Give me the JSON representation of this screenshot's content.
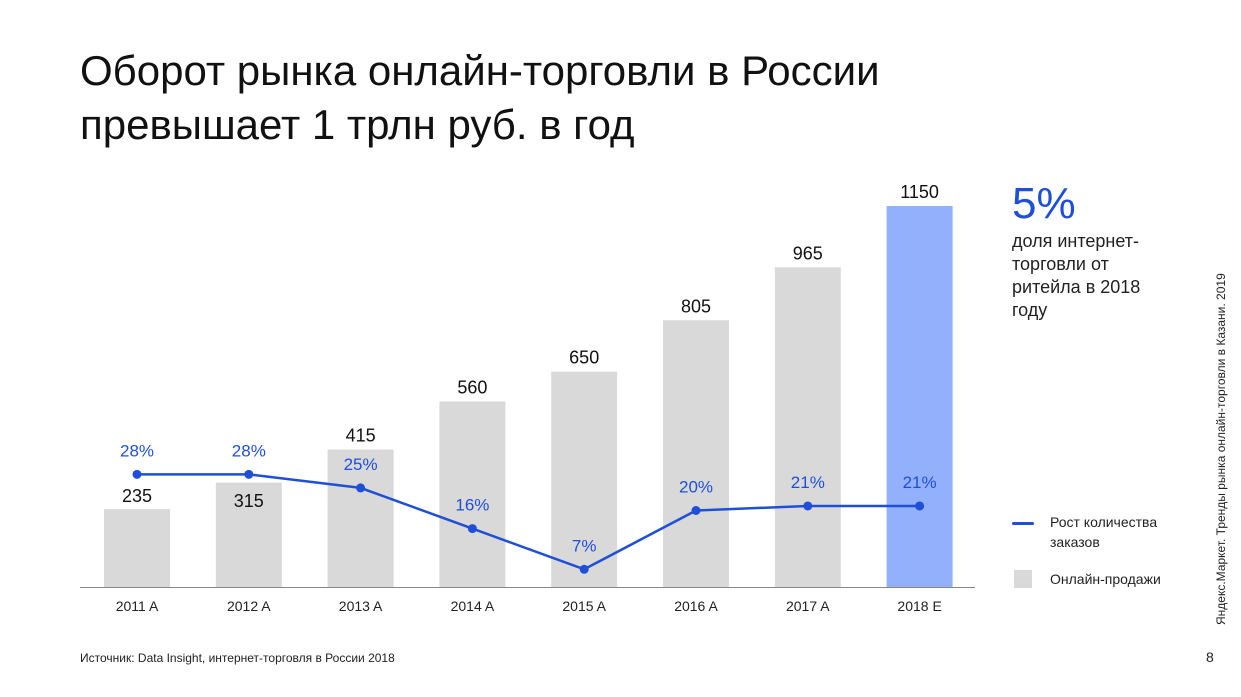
{
  "title": {
    "line1": "Оборот рынка онлайн-торговли в России",
    "line2": "превышает 1 трлн руб. в год"
  },
  "side_note": {
    "value": "5%",
    "text": "доля интернет-торговли от ритейла в 2018 году"
  },
  "legend": {
    "line_label": "Рост количества заказов",
    "bar_label": "Онлайн-продажи"
  },
  "source": "Источник: Data Insight, интернет-торговля в России 2018",
  "page_number": "8",
  "vertical_note": "Яндекс.Маркет. Тренды рынка онлайн-торговли в Казани. 2019",
  "colors": {
    "bar": "#d9d9d9",
    "bar_highlight": "#92b0fb",
    "line": "#1f4fd8",
    "growth_label": "#1f4fd8"
  },
  "chart_data": {
    "type": "bar",
    "categories": [
      "2011 A",
      "2012 A",
      "2013 A",
      "2014 A",
      "2015 A",
      "2016 A",
      "2017 A",
      "2018 E"
    ],
    "series": [
      {
        "name": "Онлайн-продажи",
        "type": "bar",
        "values": [
          235,
          315,
          415,
          560,
          650,
          805,
          965,
          1150
        ],
        "labels": [
          "235",
          "315",
          "415",
          "560",
          "650",
          "805",
          "965",
          "1150"
        ],
        "highlight_index": 7
      },
      {
        "name": "Рост количества заказов",
        "type": "line",
        "values": [
          28,
          28,
          25,
          16,
          7,
          20,
          21,
          21
        ],
        "labels": [
          "28%",
          "28%",
          "25%",
          "16%",
          "7%",
          "20%",
          "21%",
          "21%"
        ]
      }
    ],
    "bar_ylim": [
      0,
      1150
    ],
    "line_ylim": [
      0,
      40
    ],
    "grid": false,
    "legend_position": "right"
  }
}
